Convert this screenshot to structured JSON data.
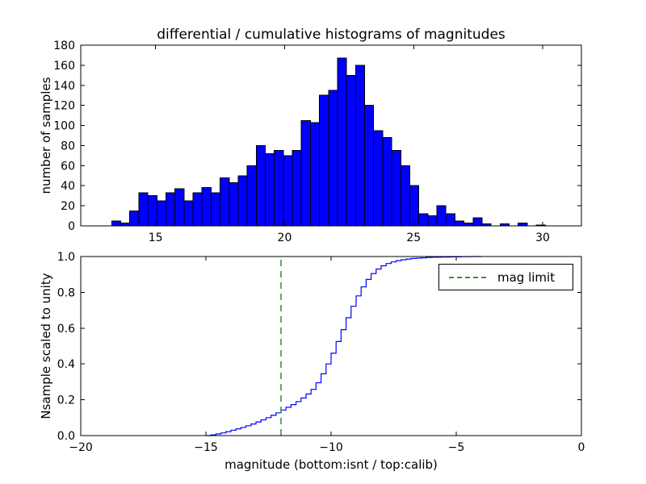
{
  "figure": {
    "background": "#ffffff",
    "axis_color": "#000000"
  },
  "chart_data": [
    {
      "type": "bar",
      "title": "differential / cumulative histograms of magnitudes",
      "ylabel": "number of samples",
      "bar_color": "#0000ff",
      "bar_edge_color": "#000000",
      "xlim": [
        12.1,
        31.5
      ],
      "ylim": [
        0,
        180
      ],
      "xticks": [
        15,
        20,
        25,
        30
      ],
      "xtick_labels": [
        "15",
        "20",
        "25",
        "30"
      ],
      "yticks": [
        0,
        20,
        40,
        60,
        80,
        100,
        120,
        140,
        160,
        180
      ],
      "ytick_labels": [
        "0",
        "20",
        "40",
        "60",
        "80",
        "100",
        "120",
        "140",
        "160",
        "180"
      ],
      "bin_start": 13.3,
      "bin_width": 0.35,
      "counts": [
        5,
        3,
        15,
        33,
        30,
        25,
        33,
        37,
        25,
        33,
        38,
        33,
        48,
        43,
        50,
        60,
        80,
        72,
        75,
        70,
        75,
        105,
        103,
        130,
        135,
        167,
        150,
        160,
        120,
        95,
        88,
        75,
        60,
        40,
        12,
        10,
        20,
        12,
        5,
        3,
        8,
        2,
        0,
        2,
        0,
        3,
        0,
        1
      ]
    },
    {
      "type": "line",
      "step": true,
      "ylabel": "Nsample scaled to unity",
      "xlabel": "magnitude (bottom:isnt / top:calib)",
      "line_color": "#0000ff",
      "xlim": [
        -20,
        0
      ],
      "ylim": [
        0.0,
        1.0
      ],
      "xticks": [
        -20,
        -15,
        -10,
        -5,
        0
      ],
      "xtick_labels": [
        "−20",
        "−15",
        "−10",
        "−5",
        "0"
      ],
      "yticks": [
        0.0,
        0.2,
        0.4,
        0.6,
        0.8,
        1.0
      ],
      "ytick_labels": [
        "0.0",
        "0.2",
        "0.4",
        "0.6",
        "0.8",
        "1.0"
      ],
      "points": [
        [
          -15.0,
          0.0
        ],
        [
          -14.8,
          0.004
        ],
        [
          -14.6,
          0.009
        ],
        [
          -14.4,
          0.015
        ],
        [
          -14.2,
          0.022
        ],
        [
          -14.0,
          0.03
        ],
        [
          -13.8,
          0.038
        ],
        [
          -13.6,
          0.046
        ],
        [
          -13.4,
          0.055
        ],
        [
          -13.2,
          0.065
        ],
        [
          -13.0,
          0.076
        ],
        [
          -12.8,
          0.088
        ],
        [
          -12.6,
          0.1
        ],
        [
          -12.4,
          0.113
        ],
        [
          -12.2,
          0.127
        ],
        [
          -12.0,
          0.143
        ],
        [
          -11.8,
          0.158
        ],
        [
          -11.6,
          0.173
        ],
        [
          -11.4,
          0.19
        ],
        [
          -11.2,
          0.21
        ],
        [
          -11.0,
          0.232
        ],
        [
          -10.8,
          0.258
        ],
        [
          -10.6,
          0.295
        ],
        [
          -10.4,
          0.345
        ],
        [
          -10.2,
          0.4
        ],
        [
          -10.0,
          0.46
        ],
        [
          -9.8,
          0.525
        ],
        [
          -9.6,
          0.592
        ],
        [
          -9.4,
          0.658
        ],
        [
          -9.2,
          0.722
        ],
        [
          -9.0,
          0.78
        ],
        [
          -8.8,
          0.83
        ],
        [
          -8.6,
          0.872
        ],
        [
          -8.4,
          0.905
        ],
        [
          -8.2,
          0.93
        ],
        [
          -8.0,
          0.948
        ],
        [
          -7.8,
          0.961
        ],
        [
          -7.6,
          0.97
        ],
        [
          -7.4,
          0.977
        ],
        [
          -7.2,
          0.982
        ],
        [
          -7.0,
          0.986
        ],
        [
          -6.8,
          0.989
        ],
        [
          -6.6,
          0.991
        ],
        [
          -6.4,
          0.993
        ],
        [
          -6.2,
          0.995
        ],
        [
          -6.0,
          0.996
        ],
        [
          -5.6,
          0.997
        ],
        [
          -5.2,
          0.998
        ],
        [
          -4.8,
          0.999
        ],
        [
          -4.4,
          1.0
        ]
      ],
      "vline": {
        "x": -12,
        "color": "#339933",
        "style": "dashed",
        "label": "mag limit"
      },
      "legend_position": "upper right"
    }
  ]
}
